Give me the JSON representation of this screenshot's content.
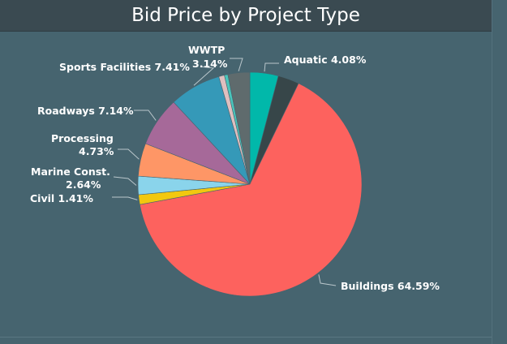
{
  "chart_data": {
    "type": "pie",
    "title": "Bid Price by Project Type",
    "start_angle_deg": 0,
    "direction": "clockwise",
    "slices": [
      {
        "name": "Aquatic",
        "label": "Aquatic 4.08%",
        "value": 4.08,
        "color": "#01b8aa"
      },
      {
        "name": "Unlabeled",
        "label": "",
        "value": 3.05,
        "color": "#374649"
      },
      {
        "name": "Buildings",
        "label": "Buildings 64.59%",
        "value": 64.59,
        "color": "#fd625e"
      },
      {
        "name": "Civil",
        "label": "Civil 1.41%",
        "value": 1.41,
        "color": "#f2c80f"
      },
      {
        "name": "Marine Const.",
        "label": "Marine Const. 2.64%",
        "value": 2.64,
        "color": "#8ad4eb"
      },
      {
        "name": "Processing",
        "label": "Processing 4.73%",
        "value": 4.73,
        "color": "#fe9666"
      },
      {
        "name": "Roadways",
        "label": "Roadways 7.14%",
        "value": 7.14,
        "color": "#a66999"
      },
      {
        "name": "Sports Facilities",
        "label": "Sports Facilities 7.41%",
        "value": 7.41,
        "color": "#3599b8"
      },
      {
        "name": "Other",
        "label": "",
        "value": 0.81,
        "color": "#dfbfbf"
      },
      {
        "name": "Other",
        "label": "",
        "value": 0.5,
        "color": "#4ac5bb"
      },
      {
        "name": "WWTP",
        "label": "WWTP 3.14%",
        "value": 3.14,
        "color": "#5f6b6d"
      }
    ]
  }
}
